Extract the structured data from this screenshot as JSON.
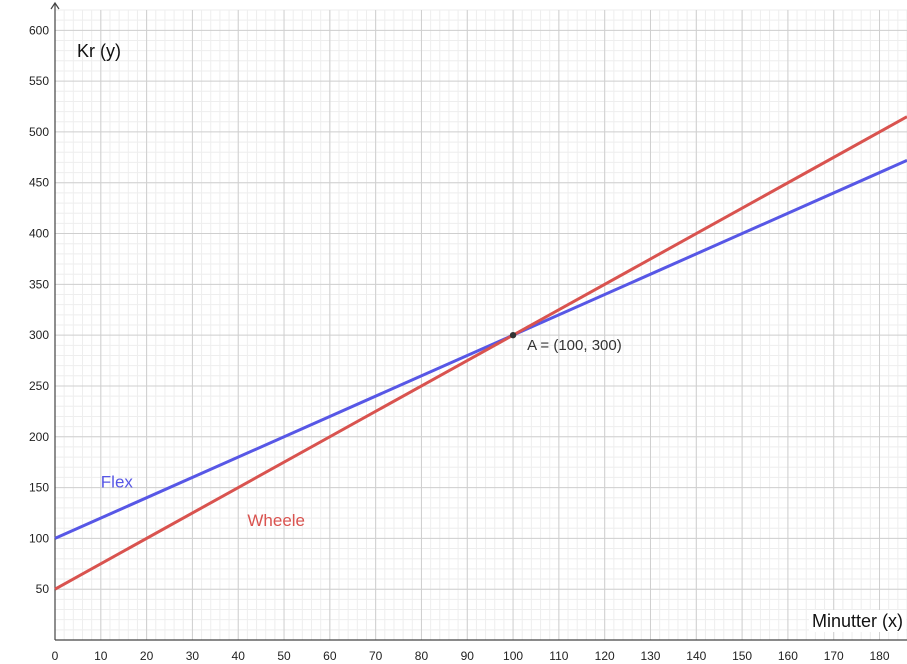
{
  "chart_data": {
    "type": "line",
    "xlabel": "Minutter (x)",
    "ylabel": "Kr (y)",
    "xlim": [
      0,
      186
    ],
    "ylim": [
      0,
      620
    ],
    "x_ticks": [
      0,
      10,
      20,
      30,
      40,
      50,
      60,
      70,
      80,
      90,
      100,
      110,
      120,
      130,
      140,
      150,
      160,
      170,
      180
    ],
    "y_ticks": [
      50,
      100,
      150,
      200,
      250,
      300,
      350,
      400,
      450,
      500,
      550,
      600
    ],
    "grid": true,
    "series": [
      {
        "name": "Flex",
        "color": "#5757e6",
        "x": [
          0,
          186
        ],
        "y": [
          100,
          472
        ]
      },
      {
        "name": "Wheele",
        "color": "#d9534f",
        "x": [
          0,
          186
        ],
        "y": [
          50,
          515
        ]
      }
    ],
    "annotations": [
      {
        "text": "A = (100, 300)",
        "x": 100,
        "y": 300
      }
    ]
  }
}
